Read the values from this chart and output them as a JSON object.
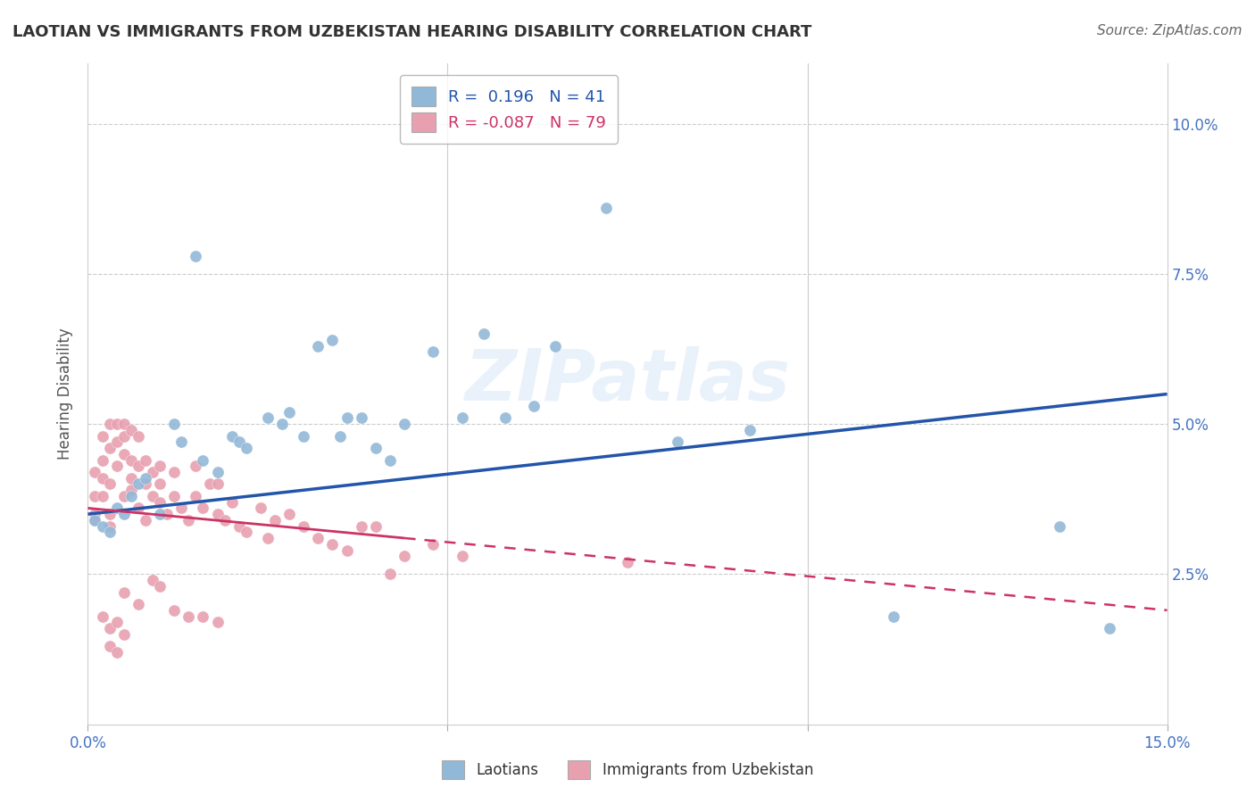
{
  "title": "LAOTIAN VS IMMIGRANTS FROM UZBEKISTAN HEARING DISABILITY CORRELATION CHART",
  "source": "Source: ZipAtlas.com",
  "ylabel": "Hearing Disability",
  "xlim": [
    0.0,
    0.15
  ],
  "ylim": [
    0.0,
    0.11
  ],
  "blue_color": "#92b8d8",
  "pink_color": "#e8a0b0",
  "blue_line_color": "#2255aa",
  "pink_line_color": "#cc3366",
  "watermark_text": "ZIPatlas",
  "legend_blue_R": "0.196",
  "legend_blue_N": "41",
  "legend_pink_R": "-0.087",
  "legend_pink_N": "79",
  "blue_x": [
    0.001,
    0.002,
    0.003,
    0.004,
    0.005,
    0.006,
    0.007,
    0.008,
    0.01,
    0.012,
    0.013,
    0.015,
    0.016,
    0.018,
    0.02,
    0.021,
    0.022,
    0.025,
    0.027,
    0.028,
    0.03,
    0.032,
    0.034,
    0.035,
    0.036,
    0.038,
    0.04,
    0.042,
    0.044,
    0.048,
    0.052,
    0.055,
    0.058,
    0.062,
    0.065,
    0.072,
    0.082,
    0.092,
    0.112,
    0.135,
    0.142
  ],
  "blue_y": [
    0.034,
    0.033,
    0.032,
    0.036,
    0.035,
    0.038,
    0.04,
    0.041,
    0.035,
    0.05,
    0.047,
    0.078,
    0.044,
    0.042,
    0.048,
    0.047,
    0.046,
    0.051,
    0.05,
    0.052,
    0.048,
    0.063,
    0.064,
    0.048,
    0.051,
    0.051,
    0.046,
    0.044,
    0.05,
    0.062,
    0.051,
    0.065,
    0.051,
    0.053,
    0.063,
    0.086,
    0.047,
    0.049,
    0.018,
    0.033,
    0.016
  ],
  "pink_x": [
    0.001,
    0.001,
    0.001,
    0.001,
    0.002,
    0.002,
    0.002,
    0.002,
    0.003,
    0.003,
    0.003,
    0.003,
    0.003,
    0.004,
    0.004,
    0.004,
    0.005,
    0.005,
    0.005,
    0.005,
    0.006,
    0.006,
    0.006,
    0.006,
    0.007,
    0.007,
    0.007,
    0.008,
    0.008,
    0.008,
    0.009,
    0.009,
    0.01,
    0.01,
    0.01,
    0.011,
    0.012,
    0.012,
    0.013,
    0.014,
    0.015,
    0.015,
    0.016,
    0.017,
    0.018,
    0.018,
    0.019,
    0.02,
    0.021,
    0.022,
    0.024,
    0.025,
    0.026,
    0.028,
    0.03,
    0.032,
    0.034,
    0.036,
    0.038,
    0.04,
    0.042,
    0.044,
    0.048,
    0.052,
    0.005,
    0.007,
    0.009,
    0.01,
    0.012,
    0.014,
    0.016,
    0.018,
    0.002,
    0.003,
    0.004,
    0.005,
    0.003,
    0.004,
    0.075
  ],
  "pink_y": [
    0.035,
    0.038,
    0.042,
    0.034,
    0.038,
    0.044,
    0.041,
    0.048,
    0.04,
    0.046,
    0.05,
    0.035,
    0.033,
    0.047,
    0.05,
    0.043,
    0.05,
    0.045,
    0.048,
    0.038,
    0.044,
    0.049,
    0.039,
    0.041,
    0.043,
    0.048,
    0.036,
    0.044,
    0.04,
    0.034,
    0.038,
    0.042,
    0.04,
    0.043,
    0.037,
    0.035,
    0.042,
    0.038,
    0.036,
    0.034,
    0.038,
    0.043,
    0.036,
    0.04,
    0.04,
    0.035,
    0.034,
    0.037,
    0.033,
    0.032,
    0.036,
    0.031,
    0.034,
    0.035,
    0.033,
    0.031,
    0.03,
    0.029,
    0.033,
    0.033,
    0.025,
    0.028,
    0.03,
    0.028,
    0.022,
    0.02,
    0.024,
    0.023,
    0.019,
    0.018,
    0.018,
    0.017,
    0.018,
    0.016,
    0.017,
    0.015,
    0.013,
    0.012,
    0.027
  ]
}
